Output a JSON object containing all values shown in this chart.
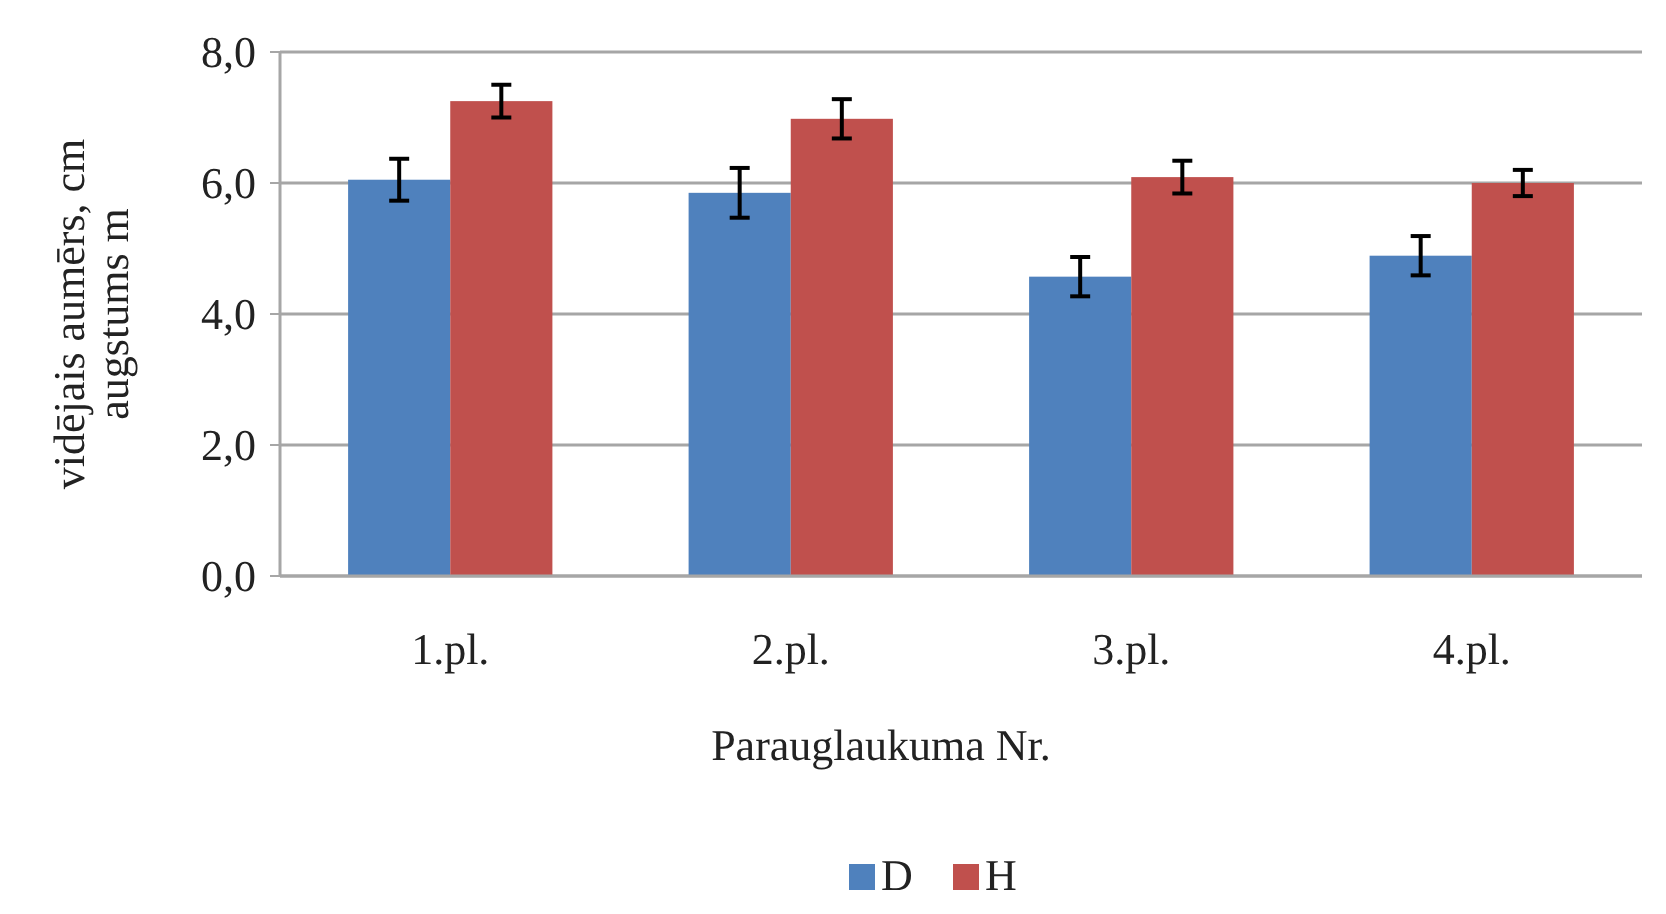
{
  "chart_data": {
    "type": "bar",
    "xlabel": "Parauglaukuma Nr.",
    "ylabel": "vidējais aumērs, cm\naugstums m",
    "categories": [
      "1.pl.",
      "2.pl.",
      "3.pl.",
      "4.pl."
    ],
    "series": [
      {
        "name": "D",
        "color": "#4f81bd",
        "values": [
          6.05,
          5.85,
          4.57,
          4.89
        ],
        "errors": [
          0.32,
          0.38,
          0.3,
          0.3
        ]
      },
      {
        "name": "H",
        "color": "#c0504d",
        "values": [
          7.25,
          6.98,
          6.09,
          6.0
        ],
        "errors": [
          0.25,
          0.3,
          0.25,
          0.2
        ]
      }
    ],
    "ylim": [
      0,
      8
    ],
    "yticks": [
      {
        "value": 0,
        "label": "0,0"
      },
      {
        "value": 2,
        "label": "2,0"
      },
      {
        "value": 4,
        "label": "4,0"
      },
      {
        "value": 6,
        "label": "6,0"
      },
      {
        "value": 8,
        "label": "8,0"
      }
    ],
    "grid": "y",
    "legend": "bottom"
  }
}
